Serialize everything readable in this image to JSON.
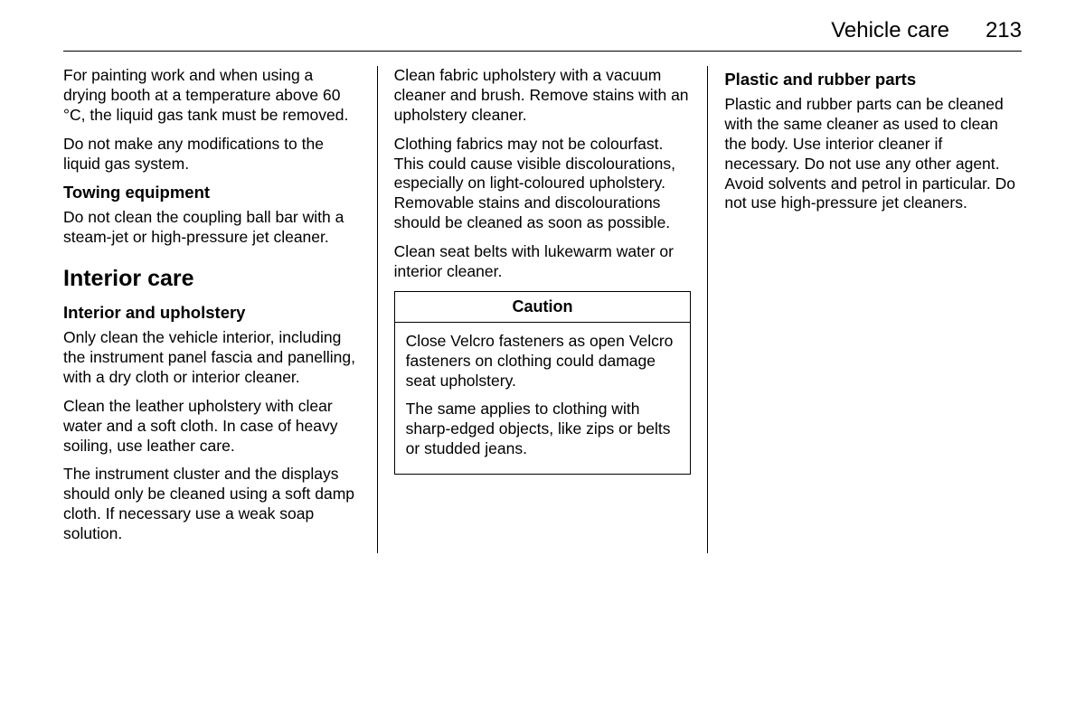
{
  "header": {
    "title": "Vehicle care",
    "page": "213"
  },
  "col1": {
    "p1": "For painting work and when using a drying booth at a temperature above 60 °C, the liquid gas tank must be removed.",
    "p2": "Do not make any modifications to the liquid gas system.",
    "h_towing": "Towing equipment",
    "p3": "Do not clean the coupling ball bar with a steam-jet or high-pressure jet cleaner.",
    "h_interior_care": "Interior care",
    "h_interior_upholstery": "Interior and upholstery",
    "p4": "Only clean the vehicle interior, including the instrument panel fascia and panelling, with a dry cloth or interior cleaner.",
    "p5": "Clean the leather upholstery with clear water and a soft cloth. In case of heavy soiling, use leather care.",
    "p6": "The instrument cluster and the displays should only be cleaned using a soft damp cloth. If necessary use a weak soap solution."
  },
  "col2": {
    "p1": "Clean fabric upholstery with a vacuum cleaner and brush. Remove stains with an upholstery cleaner.",
    "p2": "Clothing fabrics may not be colourfast. This could cause visible discolourations, especially on light-coloured upholstery. Removable stains and discolourations should be cleaned as soon as possible.",
    "p3": "Clean seat belts with lukewarm water or interior cleaner.",
    "caution_title": "Caution",
    "caution_p1": "Close Velcro fasteners as open Velcro fasteners on clothing could damage seat upholstery.",
    "caution_p2": "The same applies to clothing with sharp-edged objects, like zips or belts or studded jeans."
  },
  "col3": {
    "h_plastic": "Plastic and rubber parts",
    "p1": "Plastic and rubber parts can be cleaned with the same cleaner as used to clean the body. Use interior cleaner if necessary. Do not use any other agent. Avoid solvents and petrol in particular. Do not use high-pressure jet cleaners."
  }
}
